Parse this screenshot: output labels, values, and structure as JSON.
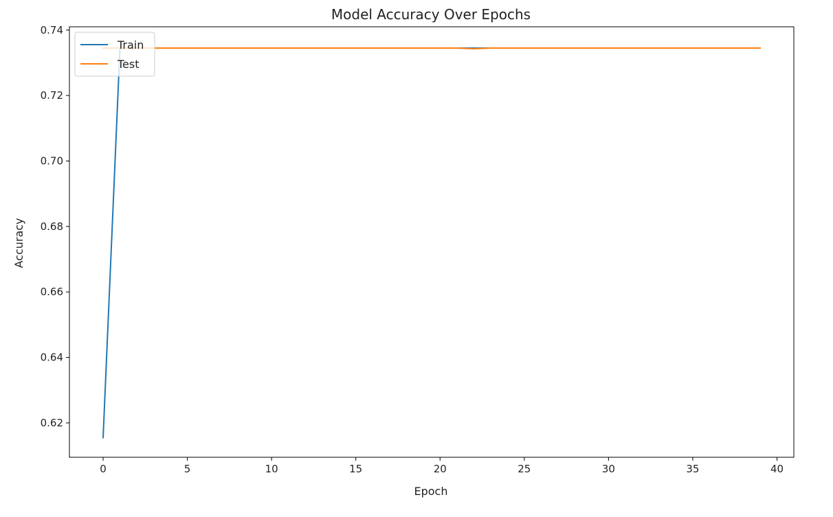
{
  "chart_data": {
    "type": "line",
    "title": "Model Accuracy Over Epochs",
    "xlabel": "Epoch",
    "ylabel": "Accuracy",
    "xlim": [
      -2,
      41
    ],
    "ylim": [
      0.6095,
      0.741
    ],
    "xticks": [
      0,
      5,
      10,
      15,
      20,
      25,
      30,
      35,
      40
    ],
    "yticks": [
      0.62,
      0.64,
      0.66,
      0.68,
      0.7,
      0.72,
      0.74
    ],
    "grid": false,
    "legend": {
      "placement": "upper left",
      "entries": [
        "Train",
        "Test"
      ]
    },
    "series": [
      {
        "name": "Train",
        "color": "#1f77b4",
        "x": [
          0,
          1,
          2,
          3,
          4,
          5,
          6,
          7,
          8,
          9,
          10,
          11,
          12,
          13,
          14,
          15,
          16,
          17,
          18,
          19,
          20,
          21,
          22,
          23,
          24,
          25,
          26,
          27,
          28,
          29,
          30,
          31,
          32,
          33,
          34,
          35,
          36,
          37,
          38,
          39
        ],
        "values": [
          0.6155,
          0.7345,
          0.7345,
          0.7345,
          0.7345,
          0.7345,
          0.7345,
          0.7345,
          0.7345,
          0.7345,
          0.7345,
          0.7345,
          0.7345,
          0.7345,
          0.7345,
          0.7345,
          0.7345,
          0.7345,
          0.7345,
          0.7345,
          0.7345,
          0.7345,
          0.7345,
          0.7345,
          0.7345,
          0.7345,
          0.7345,
          0.7345,
          0.7345,
          0.7345,
          0.7345,
          0.7345,
          0.7345,
          0.7345,
          0.7345,
          0.7345,
          0.7345,
          0.7345,
          0.7345,
          0.7345
        ]
      },
      {
        "name": "Test",
        "color": "#ff7f0e",
        "x": [
          0,
          1,
          2,
          3,
          4,
          5,
          6,
          7,
          8,
          9,
          10,
          11,
          12,
          13,
          14,
          15,
          16,
          17,
          18,
          19,
          20,
          21,
          22,
          23,
          24,
          25,
          26,
          27,
          28,
          29,
          30,
          31,
          32,
          33,
          34,
          35,
          36,
          37,
          38,
          39
        ],
        "values": [
          0.7345,
          0.7345,
          0.7345,
          0.7345,
          0.7345,
          0.7345,
          0.7345,
          0.7345,
          0.7345,
          0.7345,
          0.7345,
          0.7345,
          0.7345,
          0.7345,
          0.7345,
          0.7345,
          0.7345,
          0.7345,
          0.7345,
          0.7345,
          0.7345,
          0.7345,
          0.7343,
          0.7345,
          0.7345,
          0.7345,
          0.7345,
          0.7345,
          0.7345,
          0.7345,
          0.7345,
          0.7345,
          0.7345,
          0.7345,
          0.7345,
          0.7345,
          0.7345,
          0.7345,
          0.7345,
          0.7345
        ]
      }
    ]
  }
}
